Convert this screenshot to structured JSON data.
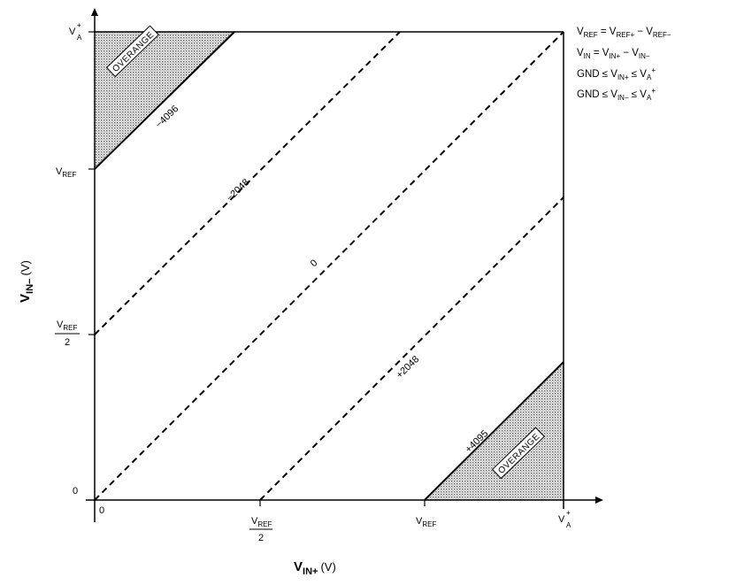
{
  "axes": {
    "x_title_main": "V",
    "x_title_sub": "IN+",
    "x_title_unit": "(V)",
    "y_title_main": "V",
    "y_title_sub": "IN−",
    "y_title_unit": "(V)"
  },
  "x_ticks": {
    "zero": "0",
    "vref_half_num": "V",
    "vref_half_num_sub": "REF",
    "vref_half_den": "2",
    "vref": "V",
    "vref_sub": "REF",
    "va": "V",
    "va_sup": "+",
    "va_sub": "A"
  },
  "y_ticks": {
    "zero": "0",
    "vref_half_num": "V",
    "vref_half_num_sub": "REF",
    "vref_half_den": "2",
    "vref": "V",
    "vref_sub": "REF",
    "va": "V",
    "va_sup": "+",
    "va_sub": "A"
  },
  "lines": {
    "minus4096": "−4096",
    "minus2048": "−2048",
    "zero": "0",
    "plus2048": "+2048",
    "plus4095": "+4095"
  },
  "regions": {
    "overrange_top": "OVERANGE",
    "overrange_bottom": "OVERANGE"
  },
  "legend": {
    "line1": {
      "a": "V",
      "a_sub": "REF",
      "op1": " = V",
      "b_sub": "REF+",
      "op2": " − V",
      "c_sub": "REF−"
    },
    "line2": {
      "a": "V",
      "a_sub": "IN",
      "op1": " = V",
      "b_sub": "IN+",
      "op2": " − V",
      "c_sub": "IN−"
    },
    "line3": {
      "pre": "GND ≤ V",
      "sub": "IN+",
      "mid": " ≤ V",
      "sub2": "A",
      "sup": "+"
    },
    "line4": {
      "pre": "GND ≤ V",
      "sub": "IN−",
      "mid": " ≤ V",
      "sub2": "A",
      "sup": "+"
    }
  },
  "colors": {
    "shade": "#d6d6d6",
    "ink": "#000000"
  }
}
